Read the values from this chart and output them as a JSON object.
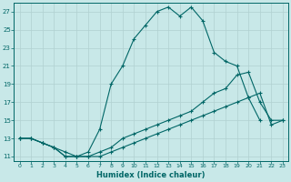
{
  "xlabel": "Humidex (Indice chaleur)",
  "line_upper": {
    "x": [
      0,
      1,
      2,
      3,
      4,
      5,
      6,
      7,
      8,
      9,
      10,
      11,
      12,
      13,
      14,
      15,
      16,
      17,
      18,
      19,
      20,
      21
    ],
    "y": [
      13,
      13,
      12.5,
      12,
      11,
      11,
      11.5,
      14,
      19,
      21,
      24,
      25.5,
      27,
      27.5,
      26.5,
      27.5,
      26,
      22.5,
      21.5,
      21,
      17.5,
      15
    ]
  },
  "line_mid": {
    "x": [
      0,
      1,
      2,
      3,
      4,
      5,
      6,
      7,
      8,
      9,
      10,
      11,
      12,
      13,
      14,
      15,
      16,
      17,
      18,
      19,
      20,
      21,
      22,
      23
    ],
    "y": [
      13,
      13,
      12.5,
      12,
      11.5,
      11,
      11,
      11.5,
      12,
      13,
      13.5,
      14,
      14.5,
      15,
      15.5,
      16,
      17,
      18,
      18.5,
      20,
      20.3,
      17,
      15,
      15
    ]
  },
  "line_lower": {
    "x": [
      0,
      1,
      2,
      3,
      4,
      5,
      6,
      7,
      8,
      9,
      10,
      11,
      12,
      13,
      14,
      15,
      16,
      17,
      18,
      19,
      20,
      21,
      22,
      23
    ],
    "y": [
      13,
      13,
      12.5,
      12,
      11,
      11,
      11,
      11,
      11.5,
      12,
      12.5,
      13,
      13.5,
      14,
      14.5,
      15,
      15.5,
      16,
      16.5,
      17,
      17.5,
      18,
      14.5,
      15
    ]
  },
  "color": "#006666",
  "bg_color": "#c8e8e8",
  "grid_color": "#b0d0d0",
  "ylim": [
    10.5,
    28
  ],
  "xlim": [
    -0.5,
    23.5
  ],
  "yticks": [
    11,
    13,
    15,
    17,
    19,
    21,
    23,
    25,
    27
  ],
  "xticks": [
    0,
    1,
    2,
    3,
    4,
    5,
    6,
    7,
    8,
    9,
    10,
    11,
    12,
    13,
    14,
    15,
    16,
    17,
    18,
    19,
    20,
    21,
    22,
    23
  ]
}
